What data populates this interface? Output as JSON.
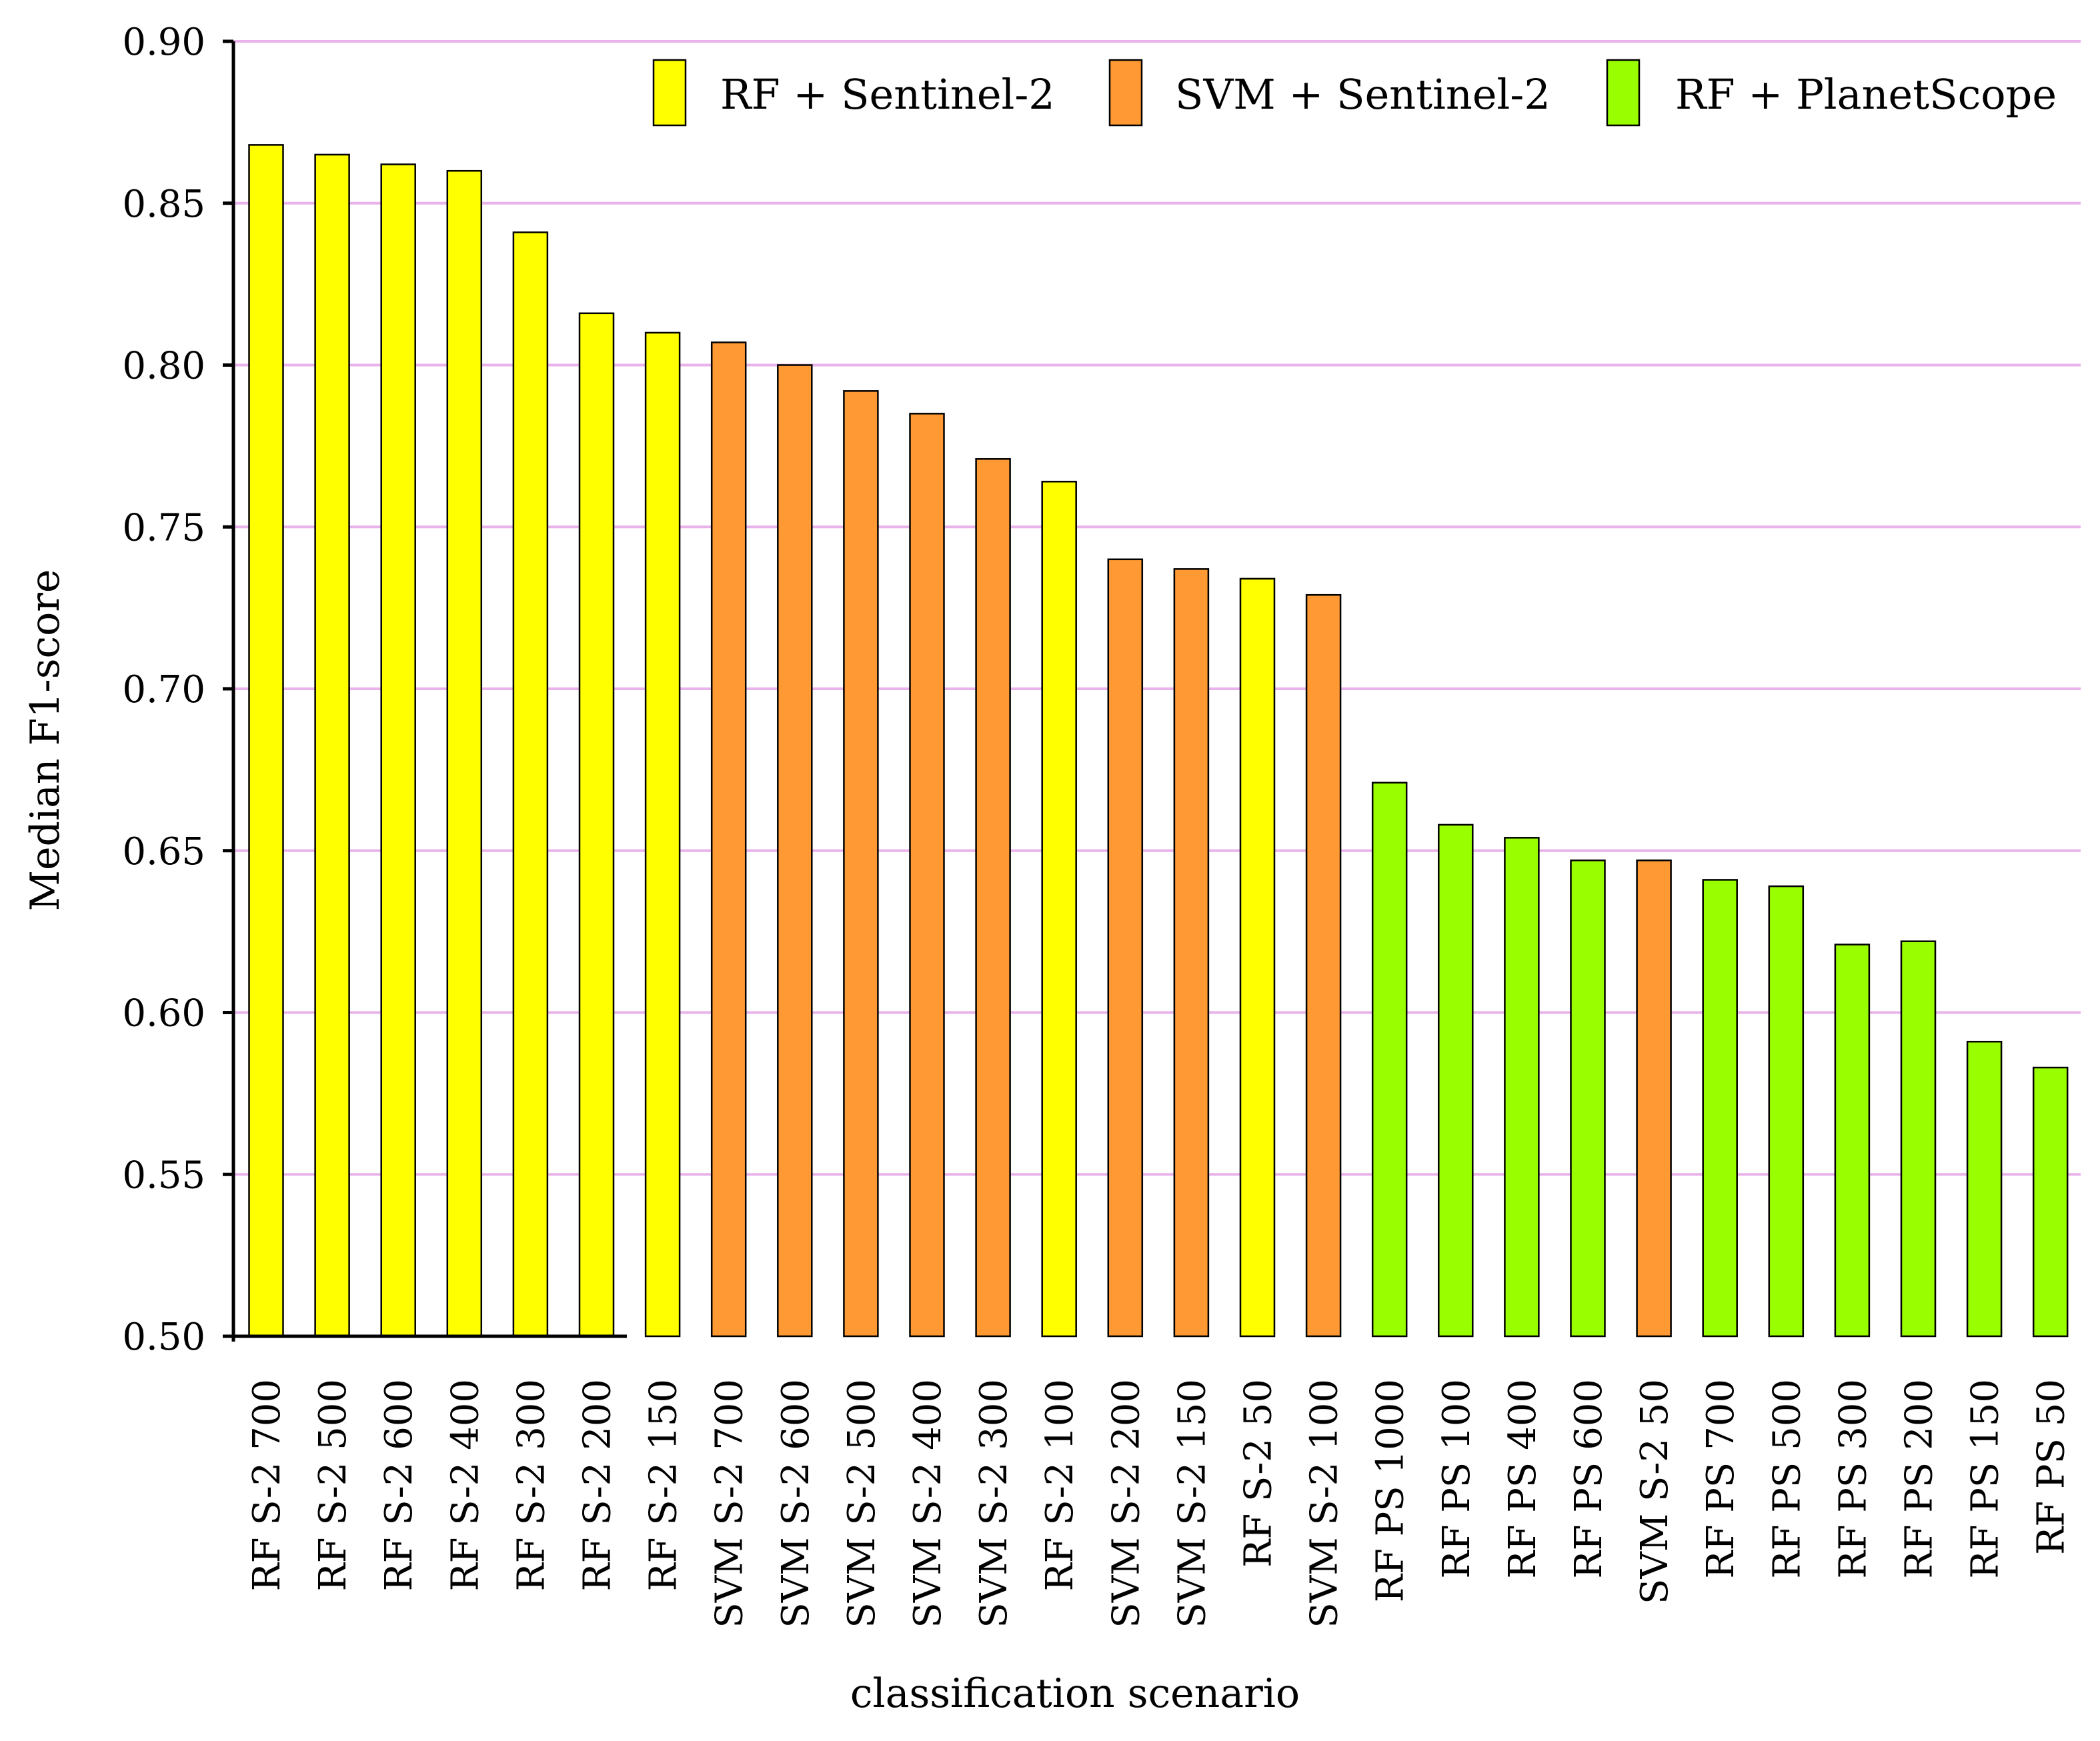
{
  "chart_data": {
    "type": "bar",
    "title": "",
    "xlabel": "classification scenario",
    "ylabel": "Median F1-score",
    "ylim": [
      0.5,
      0.9
    ],
    "yticks": [
      "0.50",
      "0.55",
      "0.60",
      "0.65",
      "0.70",
      "0.75",
      "0.80",
      "0.85",
      "0.90"
    ],
    "grid": true,
    "legend_position": "top-right",
    "series": [
      {
        "name": "RF + Sentinel-2",
        "key": "rf_s2",
        "color": "#ffff00"
      },
      {
        "name": "SVM + Sentinel-2",
        "key": "svm_s2",
        "color": "#ff9933"
      },
      {
        "name": "RF + PlanetScope",
        "key": "rf_ps",
        "color": "#99ff00"
      }
    ],
    "categories": [
      "RF  S-2  700",
      "RF  S-2  500",
      "RF  S-2  600",
      "RF  S-2  400",
      "RF  S-2  300",
      "RF  S-2  200",
      "RF  S-2  150",
      "SVM  S-2  700",
      "SVM  S-2  600",
      "SVM  S-2  500",
      "SVM  S-2  400",
      "SVM  S-2  300",
      "RF  S-2  100",
      "SVM  S-2  200",
      "SVM  S-2  150",
      "RF  S-2  50",
      "SVM  S-2  100",
      "RF  PS  1000",
      "RF  PS  100",
      "RF  PS  400",
      "RF  PS  600",
      "SVM  S-2  50",
      "RF  PS  700",
      "RF  PS  500",
      "RF  PS  300",
      "RF  PS  200",
      "RF  PS  150",
      "RF  PS  50"
    ],
    "values": [
      0.868,
      0.865,
      0.862,
      0.86,
      0.841,
      0.816,
      0.81,
      0.807,
      0.8,
      0.792,
      0.785,
      0.771,
      0.764,
      0.74,
      0.737,
      0.734,
      0.729,
      0.671,
      0.658,
      0.654,
      0.647,
      0.647,
      0.641,
      0.639,
      0.621,
      0.622,
      0.591,
      0.583
    ],
    "groups": [
      "rf_s2",
      "rf_s2",
      "rf_s2",
      "rf_s2",
      "rf_s2",
      "rf_s2",
      "rf_s2",
      "svm_s2",
      "svm_s2",
      "svm_s2",
      "svm_s2",
      "svm_s2",
      "rf_s2",
      "svm_s2",
      "svm_s2",
      "rf_s2",
      "svm_s2",
      "rf_ps",
      "rf_ps",
      "rf_ps",
      "rf_ps",
      "svm_s2",
      "rf_ps",
      "rf_ps",
      "rf_ps",
      "rf_ps",
      "rf_ps",
      "rf_ps"
    ],
    "colors": {
      "gridline": "#eab2ea",
      "axis": "#000000",
      "bar_outline": "#000000"
    }
  }
}
